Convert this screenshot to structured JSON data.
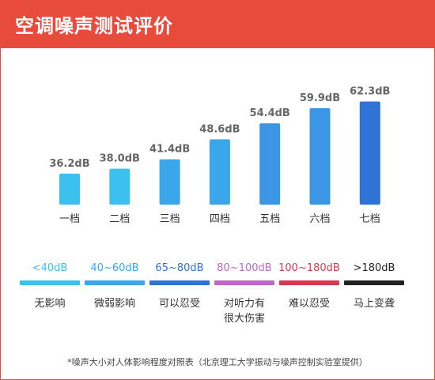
{
  "header": {
    "title": "空调噪声测试评价"
  },
  "chart_data": {
    "type": "bar",
    "categories": [
      "一档",
      "二档",
      "三档",
      "四档",
      "五档",
      "六档",
      "七档"
    ],
    "values": [
      36.2,
      38.0,
      41.4,
      48.6,
      54.4,
      59.9,
      62.3
    ],
    "value_labels": [
      "36.2dB",
      "38.0dB",
      "41.4dB",
      "48.6dB",
      "54.4dB",
      "59.9dB",
      "62.3dB"
    ],
    "unit": "dB",
    "colors": [
      "#3cc1ef",
      "#3cc1ef",
      "#3aa6ec",
      "#3aa6ec",
      "#3b97e5",
      "#3b97e5",
      "#2f73d6"
    ],
    "ylim": [
      0,
      65
    ],
    "grid": false,
    "axes_visible": false
  },
  "legend": [
    {
      "range": "<40dB",
      "desc": "无影响",
      "color": "#3cc1ef"
    },
    {
      "range": "40~60dB",
      "desc": "微弱影响",
      "color": "#3aa6ec"
    },
    {
      "range": "65~80dB",
      "desc": "可以忍受",
      "color": "#2f73d6"
    },
    {
      "range": "80~100dB",
      "desc": "对听力有很大伤害",
      "color": "#c067c6"
    },
    {
      "range": "100~180dB",
      "desc": "难以忍受",
      "color": "#d73a4f"
    },
    {
      "range": ">180dB",
      "desc": "马上变聋",
      "color": "#222222"
    }
  ],
  "footnote": "*噪声大小对人体影响程度对照表（北京理工大学振动与噪声控制实验室提供）"
}
